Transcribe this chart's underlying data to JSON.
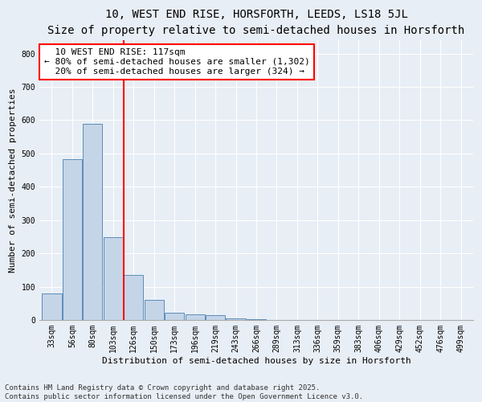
{
  "title": "10, WEST END RISE, HORSFORTH, LEEDS, LS18 5JL",
  "subtitle": "Size of property relative to semi-detached houses in Horsforth",
  "xlabel": "Distribution of semi-detached houses by size in Horsforth",
  "ylabel": "Number of semi-detached properties",
  "categories": [
    "33sqm",
    "56sqm",
    "80sqm",
    "103sqm",
    "126sqm",
    "150sqm",
    "173sqm",
    "196sqm",
    "219sqm",
    "243sqm",
    "266sqm",
    "289sqm",
    "313sqm",
    "336sqm",
    "359sqm",
    "383sqm",
    "406sqm",
    "429sqm",
    "452sqm",
    "476sqm",
    "499sqm"
  ],
  "values": [
    80,
    483,
    590,
    250,
    135,
    60,
    22,
    17,
    15,
    5,
    4,
    0,
    0,
    0,
    0,
    0,
    0,
    0,
    0,
    0,
    0
  ],
  "bar_color": "#c5d5e8",
  "bar_edge_color": "#5b8db8",
  "annotation_text": "  10 WEST END RISE: 117sqm\n← 80% of semi-detached houses are smaller (1,302)\n  20% of semi-detached houses are larger (324) →",
  "ylim": [
    0,
    840
  ],
  "yticks": [
    0,
    100,
    200,
    300,
    400,
    500,
    600,
    700,
    800
  ],
  "background_color": "#e8eef5",
  "footer_text": "Contains HM Land Registry data © Crown copyright and database right 2025.\nContains public sector information licensed under the Open Government Licence v3.0.",
  "title_fontsize": 10,
  "subtitle_fontsize": 9,
  "axis_label_fontsize": 8,
  "tick_fontsize": 7,
  "annotation_fontsize": 8,
  "footer_fontsize": 6.5
}
